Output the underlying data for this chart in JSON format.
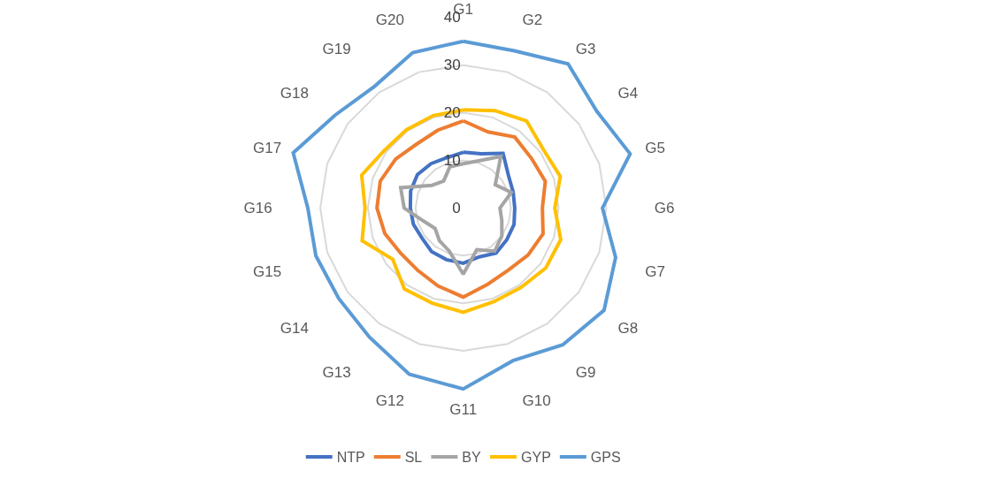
{
  "chart_data": {
    "type": "radar",
    "categories": [
      "G1",
      "G2",
      "G3",
      "G4",
      "G5",
      "G6",
      "G7",
      "G8",
      "G9",
      "G10",
      "G11",
      "G12",
      "G13",
      "G14",
      "G15",
      "G16",
      "G17",
      "G18",
      "G19",
      "G20"
    ],
    "ylim": [
      0,
      40
    ],
    "yticks": [
      0,
      10,
      20,
      30,
      40
    ],
    "grid": true,
    "legend": "bottom",
    "marker": "none",
    "line_style": "solid",
    "series": [
      {
        "name": "NTP",
        "color": "#4472c4",
        "values": [
          11.7,
          12,
          14.2,
          11.7,
          11,
          10.8,
          11.2,
          11.3,
          11.7,
          10.8,
          11.6,
          11.4,
          11.3,
          10.7,
          11,
          11.1,
          11.6,
          11.9,
          11.5,
          11.1
        ]
      },
      {
        "name": "SL",
        "color": "#ed7d31",
        "values": [
          18.3,
          16.8,
          18.4,
          17.7,
          18.1,
          16.6,
          17.6,
          16.8,
          16.1,
          16.8,
          18.7,
          17.2,
          16.2,
          16.2,
          17.3,
          18.1,
          18.3,
          17.5,
          16.6,
          17.2
        ]
      },
      {
        "name": "BY",
        "color": "#a5a5a5",
        "values": [
          9.3,
          10.4,
          13.4,
          8.3,
          10.6,
          7.7,
          8.5,
          10,
          11.2,
          9.2,
          13.9,
          9.5,
          8.5,
          7.3,
          8.8,
          12.4,
          13.8,
          8.1,
          7,
          9.1
        ]
      },
      {
        "name": "GYP",
        "color": "#ffc000",
        "values": [
          20.6,
          21.5,
          22.6,
          20.8,
          21.4,
          19.2,
          21.5,
          21.4,
          20.6,
          20.7,
          21.9,
          21,
          21,
          18.3,
          22.3,
          20.6,
          22.4,
          20.5,
          20.3,
          20.4
        ]
      },
      {
        "name": "GPS",
        "color": "#5b9bd5",
        "values": [
          35,
          34.7,
          37.4,
          34.6,
          36.8,
          29.2,
          33.6,
          36.5,
          35.5,
          33.7,
          38,
          36.7,
          33.5,
          32.3,
          32.5,
          32.6,
          37.5,
          33.2,
          31.6,
          34.3
        ]
      }
    ]
  }
}
